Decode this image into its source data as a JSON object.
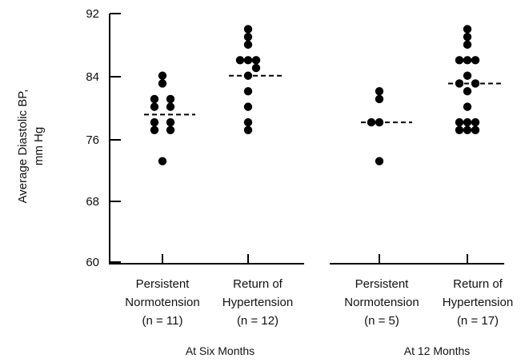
{
  "chart_data": {
    "type": "scatter",
    "ylabel_line1": "Average Diastolic BP,",
    "ylabel_line2": "mm Hg",
    "ylim": [
      60,
      92
    ],
    "yticks": [
      "60",
      "68",
      "76",
      "84",
      "92"
    ],
    "ytick_values": [
      60,
      68,
      76,
      84,
      92
    ],
    "groups": [
      {
        "label": "At Six Months",
        "categories": [
          {
            "line1": "Persistent",
            "line2": "Normotension",
            "line3": "(n = 11)",
            "mean": 79,
            "points": [
              [
                0,
                84
              ],
              [
                0,
                83
              ],
              [
                -1,
                81
              ],
              [
                1,
                81
              ],
              [
                -1,
                80
              ],
              [
                1,
                80
              ],
              [
                -1,
                78
              ],
              [
                1,
                78
              ],
              [
                -1,
                77
              ],
              [
                1,
                77
              ],
              [
                0,
                73
              ]
            ]
          },
          {
            "line1": "Return of",
            "line2": "Hypertension",
            "line3": "(n = 12)",
            "mean": 84,
            "points": [
              [
                0,
                90
              ],
              [
                0,
                89
              ],
              [
                0,
                88
              ],
              [
                -1,
                86
              ],
              [
                0,
                86
              ],
              [
                1,
                86
              ],
              [
                1,
                85
              ],
              [
                0,
                84
              ],
              [
                0,
                82
              ],
              [
                0,
                80
              ],
              [
                0,
                78
              ],
              [
                0,
                77
              ]
            ]
          }
        ]
      },
      {
        "label": "At 12 Months",
        "categories": [
          {
            "line1": "Persistent",
            "line2": "Normotension",
            "line3": "(n = 5)",
            "mean": 78,
            "points": [
              [
                0,
                82
              ],
              [
                0,
                81
              ],
              [
                -1,
                78
              ],
              [
                0,
                78
              ],
              [
                0,
                73
              ]
            ]
          },
          {
            "line1": "Return of",
            "line2": "Hypertension",
            "line3": "(n = 17)",
            "mean": 83,
            "points": [
              [
                0,
                90
              ],
              [
                0,
                89
              ],
              [
                0,
                88
              ],
              [
                -1,
                86
              ],
              [
                0,
                86
              ],
              [
                1,
                86
              ],
              [
                0,
                84
              ],
              [
                -1,
                83
              ],
              [
                1,
                83
              ],
              [
                0,
                82
              ],
              [
                0,
                80
              ],
              [
                -1,
                78
              ],
              [
                0,
                78
              ],
              [
                1,
                78
              ],
              [
                -1,
                77
              ],
              [
                0,
                77
              ],
              [
                1,
                77
              ]
            ]
          }
        ]
      }
    ],
    "colors": {
      "marker": "#000000",
      "axis": "#000000",
      "mean_line": "#000000"
    }
  }
}
